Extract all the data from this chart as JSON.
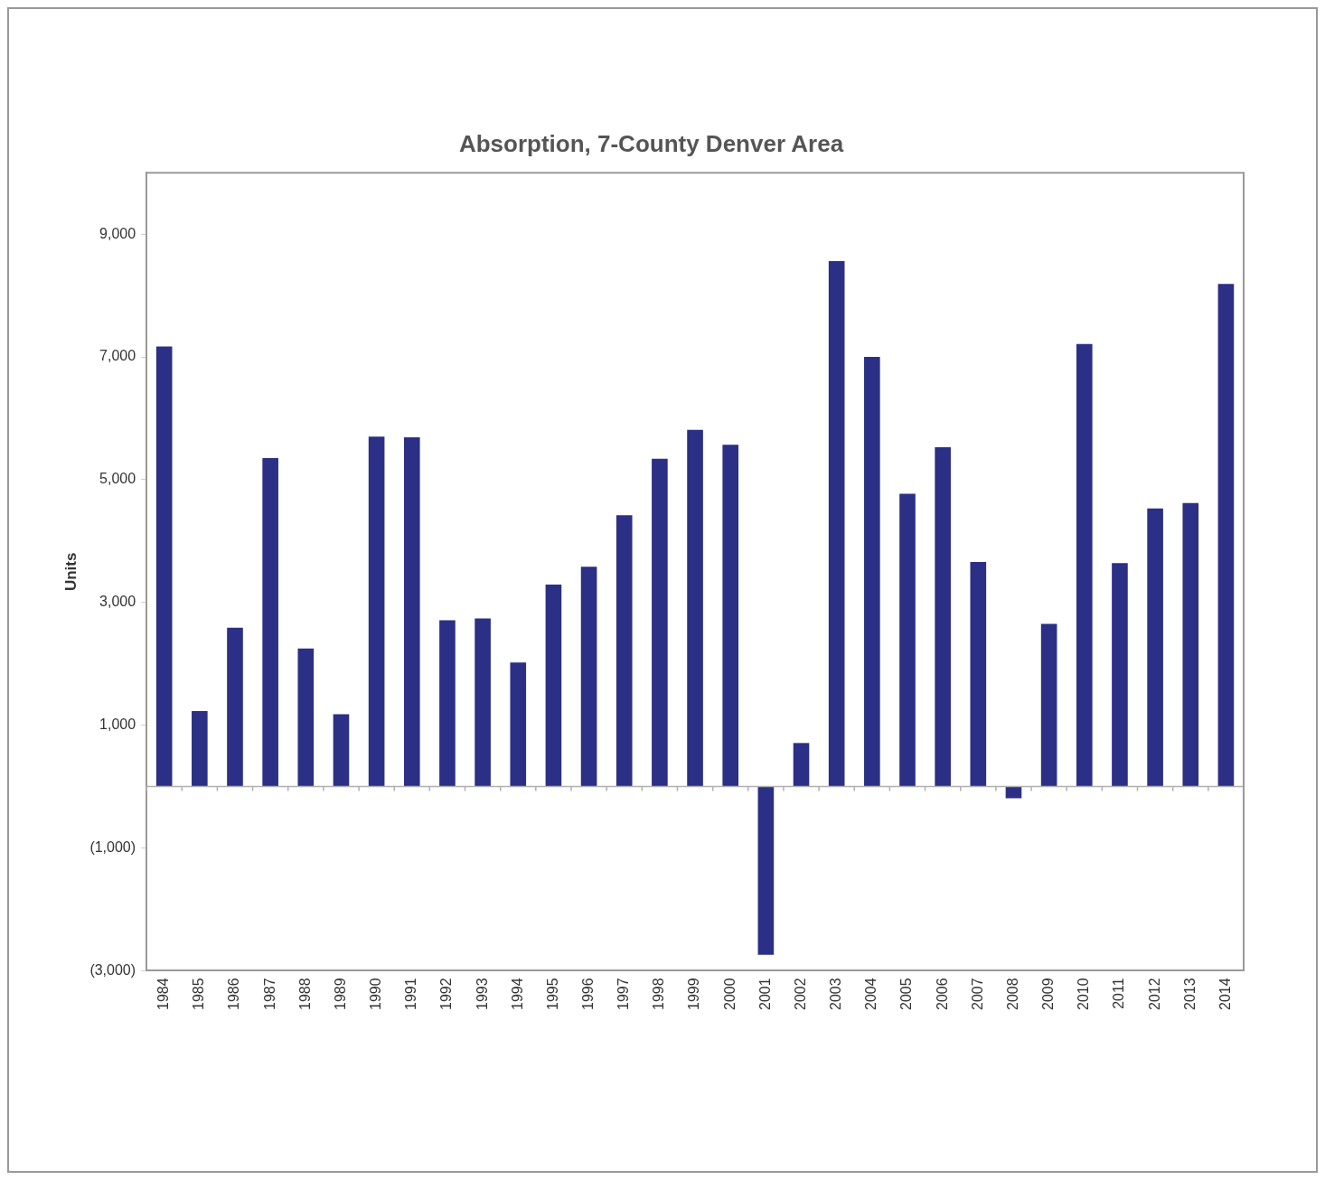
{
  "chart_data": {
    "type": "bar",
    "title": "Absorption, 7-County Denver Area",
    "ylabel": "Units",
    "categories": [
      "1984",
      "1985",
      "1986",
      "1987",
      "1988",
      "1989",
      "1990",
      "1991",
      "1992",
      "1993",
      "1994",
      "1995",
      "1996",
      "1997",
      "1998",
      "1999",
      "2000",
      "2001",
      "2002",
      "2003",
      "2004",
      "2005",
      "2006",
      "2007",
      "2008",
      "2009",
      "2010",
      "2011",
      "2012",
      "2013",
      "2014"
    ],
    "values": [
      7170,
      1230,
      2590,
      5350,
      2250,
      1180,
      5700,
      5690,
      2710,
      2740,
      2020,
      3290,
      3580,
      4420,
      5340,
      5810,
      5570,
      -2740,
      710,
      8560,
      7000,
      4770,
      5530,
      3660,
      -190,
      2650,
      7210,
      3640,
      4530,
      4620,
      8190
    ],
    "color": "#2b2f85",
    "ylim": [
      -3000,
      10000
    ],
    "yticks": [
      {
        "value": -3000,
        "label": "(3,000)"
      },
      {
        "value": -1000,
        "label": "(1,000)"
      },
      {
        "value": 1000,
        "label": "1,000"
      },
      {
        "value": 3000,
        "label": "3,000"
      },
      {
        "value": 5000,
        "label": "5,000"
      },
      {
        "value": 7000,
        "label": "7,000"
      },
      {
        "value": 9000,
        "label": "9,000"
      }
    ],
    "grid": false,
    "legend": false
  }
}
